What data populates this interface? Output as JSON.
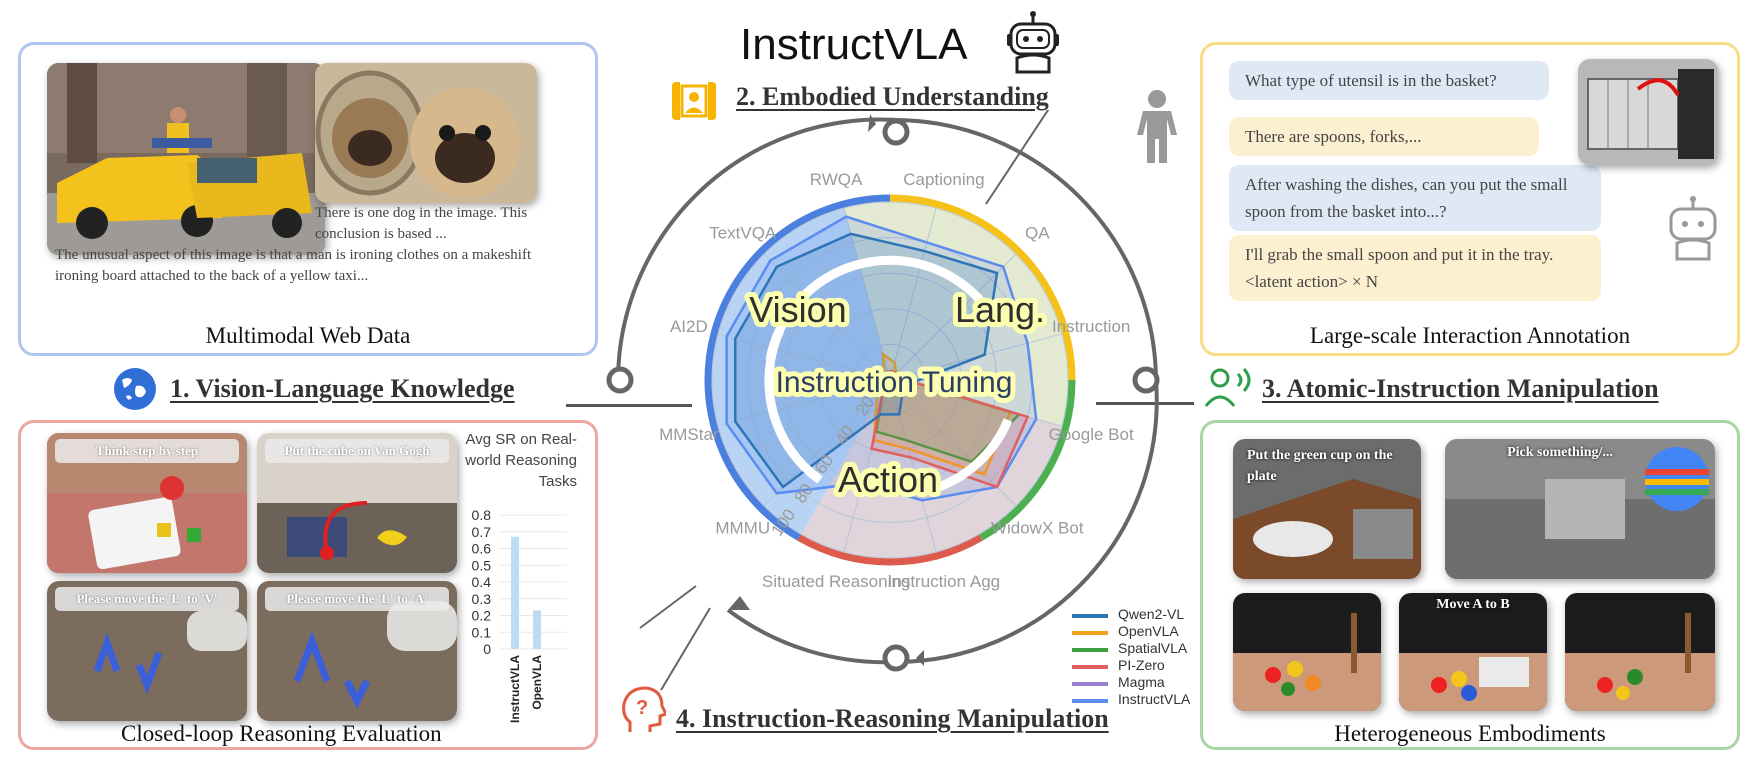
{
  "title": "InstructVLA",
  "sections": {
    "s1": "1. Vision-Language Knowledge",
    "s2": "2. Embodied Understanding",
    "s3": "3. Atomic-Instruction Manipulation",
    "s4": "4. Instruction-Reasoning Manipulation"
  },
  "panels": {
    "web": {
      "caption": "Multimodal Web Data",
      "dog_text": "There is one dog in the image. This conclusion is based ...",
      "taxi_text": "The unusual aspect of this image is that a man is ironing clothes on a makeshift ironing board attached to the back of a yellow taxi..."
    },
    "interaction": {
      "caption": "Large-scale Interaction Annotation",
      "q1": "What type of utensil is in the basket?",
      "a1": "There are spoons, forks,...",
      "q2": "After washing the dishes, can you put the small spoon from the basket into...?",
      "a2": "I'll grab the small spoon and put it in the tray. <latent action> × N"
    },
    "reasoning": {
      "caption": "Closed-loop Reasoning Evaluation",
      "tiles": [
        "Think step by step",
        "Put the cube on Van Gogh",
        "Please move the 'L' to 'V'",
        "Please move the 'L' to 'A'"
      ]
    },
    "embodiments": {
      "caption": "Heterogeneous Embodiments",
      "tiles": [
        "Put the green cup on the plate",
        "Pick something/...",
        "Move A to B"
      ]
    }
  },
  "radar": {
    "axes": [
      "RWQA",
      "Captioning",
      "QA",
      "Instruction",
      "Google Bot",
      "WidowX Bot",
      "Instruction Agg",
      "Situated Reasoning",
      "MMMU",
      "MMStar",
      "AI2D",
      "TextVQA"
    ],
    "rings": [
      "20",
      "40",
      "60",
      "80",
      "100"
    ],
    "quadrants": [
      "Vision",
      "Lang.",
      "Action"
    ],
    "center": "Instruction Tuning",
    "colors": {
      "vision": "#4b7fe0",
      "lang": "#f6c21a",
      "action_green": "#4caf50",
      "action_red": "#dd5a4c"
    }
  },
  "legend": [
    {
      "name": "Qwen2-VL",
      "color": "#2e75b6"
    },
    {
      "name": "OpenVLA",
      "color": "#f4a11d"
    },
    {
      "name": "SpatialVLA",
      "color": "#3da23d"
    },
    {
      "name": "PI-Zero",
      "color": "#e06060"
    },
    {
      "name": "Magma",
      "color": "#9b7fd3"
    },
    {
      "name": "InstructVLA",
      "color": "#5b8df0"
    }
  ],
  "chart_data": {
    "type": "bar",
    "title": "Avg SR on Real-world Reasoning Tasks",
    "categories": [
      "InstructVLA",
      "OpenVLA"
    ],
    "values": [
      0.67,
      0.23
    ],
    "yticks": [
      "0",
      "0.1",
      "0.2",
      "0.3",
      "0.4",
      "0.5",
      "0.6",
      "0.7",
      "0.8"
    ],
    "ylim": [
      0,
      0.8
    ],
    "color": "#bcdcf3"
  }
}
